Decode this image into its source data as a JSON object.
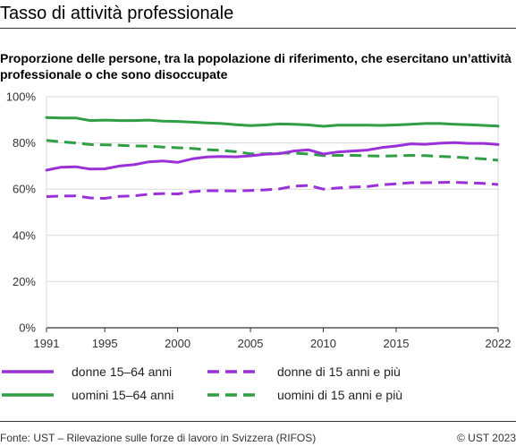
{
  "title": "Tasso di attività professionale",
  "footer": {
    "source": "Fonte: UST – Rilevazione sulle forze di lavoro in Svizzera (RIFOS)",
    "copyright": "© UST 2023"
  },
  "chart_data": {
    "type": "line",
    "title": "Proporzione delle persone, tra la popolazione di riferimento, che esercitano un’attività professionale o che sono disoccupate",
    "xlabel": "",
    "ylabel": "",
    "xlim": [
      1991,
      2022
    ],
    "ylim": [
      0,
      100
    ],
    "x_ticks": [
      1991,
      1995,
      2000,
      2005,
      2010,
      2015,
      2022
    ],
    "x_tick_labels": [
      "1991",
      "1995",
      "2000",
      "2005",
      "2010",
      "2015",
      "2022"
    ],
    "y_ticks": [
      0,
      20,
      40,
      60,
      80,
      100
    ],
    "y_tick_labels": [
      "0%",
      "20%",
      "40%",
      "60%",
      "80%",
      "100%"
    ],
    "grid": "horizontal",
    "legend_position": "bottom",
    "x": [
      1991,
      1992,
      1993,
      1994,
      1995,
      1996,
      1997,
      1998,
      1999,
      2000,
      2001,
      2002,
      2003,
      2004,
      2005,
      2006,
      2007,
      2008,
      2009,
      2010,
      2011,
      2012,
      2013,
      2014,
      2015,
      2016,
      2017,
      2018,
      2019,
      2020,
      2021,
      2022
    ],
    "series": [
      {
        "name": "donne 15–64 anni",
        "color": "#9b30d9",
        "dash": "solid",
        "values": [
          68.2,
          69.5,
          69.7,
          68.7,
          68.8,
          70.0,
          70.6,
          71.8,
          72.2,
          71.6,
          73.1,
          73.9,
          74.1,
          74.0,
          74.4,
          75.1,
          75.4,
          76.5,
          77.0,
          75.2,
          76.1,
          76.5,
          76.9,
          78.0,
          78.7,
          79.6,
          79.4,
          79.9,
          80.1,
          79.8,
          79.8,
          79.3
        ]
      },
      {
        "name": "uomini 15–64 anni",
        "color": "#2f9e44",
        "dash": "solid",
        "values": [
          91.0,
          90.8,
          90.8,
          89.7,
          89.9,
          89.7,
          89.7,
          89.9,
          89.4,
          89.3,
          89.0,
          88.7,
          88.4,
          87.9,
          87.5,
          87.8,
          88.2,
          88.1,
          87.8,
          87.2,
          87.7,
          87.7,
          87.7,
          87.6,
          87.8,
          88.1,
          88.4,
          88.4,
          88.1,
          87.9,
          87.6,
          87.3
        ]
      },
      {
        "name": "donne di 15 anni e più",
        "color": "#9b30d9",
        "dash": "dashed",
        "values": [
          56.8,
          57.0,
          57.1,
          56.2,
          56.0,
          56.9,
          57.1,
          57.8,
          58.1,
          57.9,
          58.9,
          59.3,
          59.3,
          59.2,
          59.4,
          59.7,
          60.1,
          61.3,
          61.6,
          60.0,
          60.5,
          60.9,
          61.1,
          61.9,
          62.3,
          62.8,
          62.8,
          62.9,
          63.0,
          62.7,
          62.5,
          62.0
        ]
      },
      {
        "name": "uomini di 15 anni e più",
        "color": "#2f9e44",
        "dash": "dashed",
        "values": [
          81.1,
          80.5,
          80.0,
          79.3,
          79.2,
          79.0,
          78.7,
          78.6,
          78.2,
          77.9,
          77.6,
          77.1,
          76.8,
          76.2,
          75.3,
          75.3,
          75.6,
          75.6,
          75.2,
          74.5,
          74.6,
          74.6,
          74.4,
          74.3,
          74.4,
          74.6,
          74.5,
          74.2,
          73.9,
          73.5,
          73.1,
          72.5
        ]
      }
    ]
  }
}
